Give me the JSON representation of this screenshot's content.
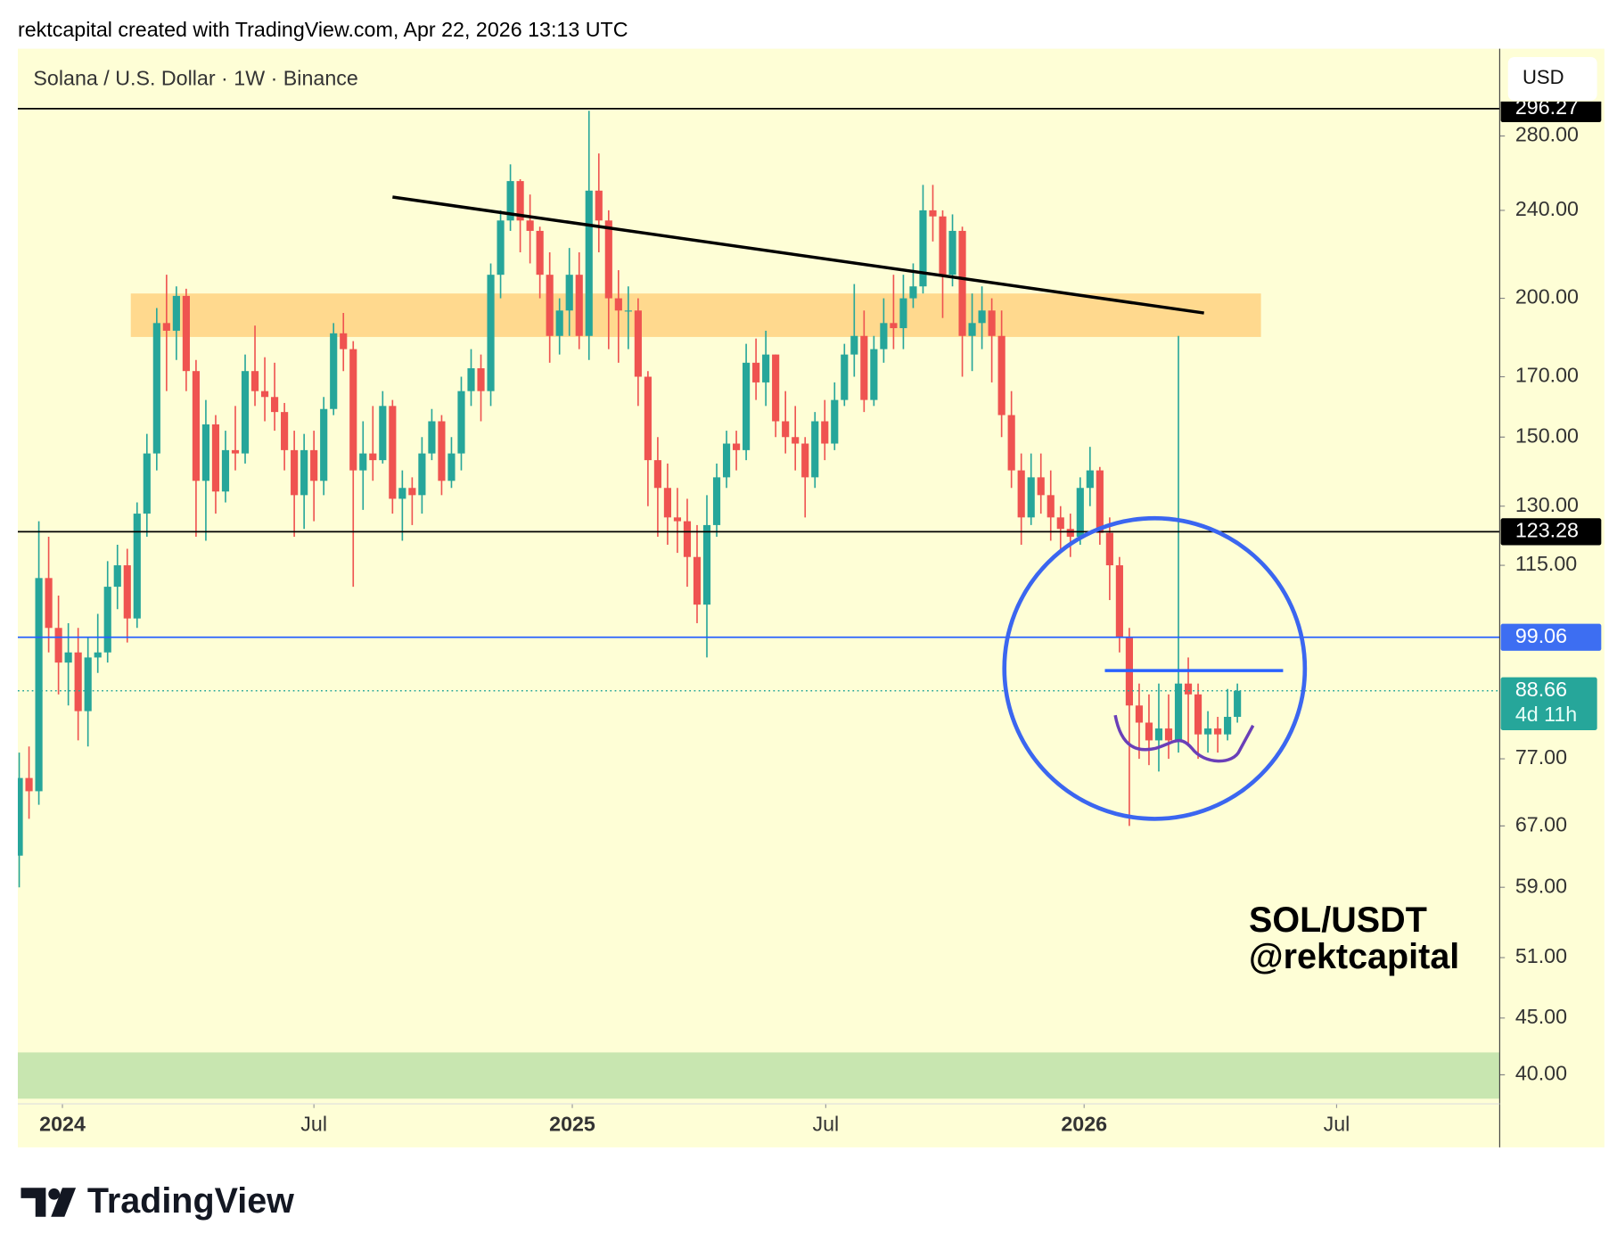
{
  "header": "rektcapital created with TradingView.com, Apr 22, 2026 13:13 UTC",
  "chart_data": {
    "type": "candlestick",
    "title": "Solana / U.S. Dollar · 1W · Binance",
    "currency": "USD",
    "log_scale": true,
    "up_color": "#26a69a",
    "down_color": "#ef5350",
    "ylim": [
      38.07,
      335.5
    ],
    "yticks": [
      {
        "value": 280,
        "label": "280.00"
      },
      {
        "value": 240,
        "label": "240.00"
      },
      {
        "value": 200,
        "label": "200.00"
      },
      {
        "value": 170,
        "label": "170.00"
      },
      {
        "value": 150,
        "label": "150.00"
      },
      {
        "value": 130,
        "label": "130.00"
      },
      {
        "value": 115,
        "label": "115.00"
      },
      {
        "value": 77,
        "label": "77.00"
      },
      {
        "value": 67,
        "label": "67.00"
      },
      {
        "value": 59,
        "label": "59.00"
      },
      {
        "value": 51,
        "label": "51.00"
      },
      {
        "value": 45,
        "label": "45.00"
      },
      {
        "value": 40,
        "label": "40.00"
      }
    ],
    "xlim": [
      -0.14,
      150.7
    ],
    "xticks": [
      {
        "value": 4.4,
        "label": "2024"
      },
      {
        "value": 30.0,
        "label": "Jul"
      },
      {
        "value": 56.3,
        "label": "2025"
      },
      {
        "value": 82.1,
        "label": "Jul"
      },
      {
        "value": 108.4,
        "label": "2026"
      },
      {
        "value": 134.1,
        "label": "Jul"
      }
    ],
    "ohlc": [
      [
        63,
        78,
        59,
        74
      ],
      [
        74,
        79,
        68,
        72
      ],
      [
        72,
        126,
        70,
        112
      ],
      [
        112,
        122,
        96,
        101
      ],
      [
        101,
        108,
        88,
        94
      ],
      [
        94,
        102,
        86,
        96
      ],
      [
        96,
        101,
        80,
        85
      ],
      [
        85,
        99,
        79,
        95
      ],
      [
        95,
        104,
        92,
        96
      ],
      [
        96,
        116,
        94,
        110
      ],
      [
        110,
        120,
        105,
        115
      ],
      [
        115,
        119,
        98,
        103
      ],
      [
        103,
        131,
        101,
        128
      ],
      [
        128,
        151,
        122,
        145
      ],
      [
        145,
        196,
        140,
        190
      ],
      [
        190,
        210,
        165,
        187
      ],
      [
        187,
        205,
        176,
        201
      ],
      [
        201,
        204,
        165,
        172
      ],
      [
        172,
        176,
        122,
        137
      ],
      [
        137,
        162,
        121,
        154
      ],
      [
        154,
        157,
        128,
        134
      ],
      [
        134,
        152,
        131,
        146
      ],
      [
        146,
        160,
        140,
        145
      ],
      [
        145,
        178,
        142,
        172
      ],
      [
        172,
        189,
        160,
        165
      ],
      [
        165,
        177,
        155,
        163
      ],
      [
        163,
        175,
        152,
        158
      ],
      [
        158,
        161,
        140,
        146
      ],
      [
        146,
        152,
        122,
        133
      ],
      [
        133,
        151,
        124,
        146
      ],
      [
        146,
        152,
        126,
        137
      ],
      [
        137,
        163,
        133,
        159
      ],
      [
        159,
        190,
        157,
        186
      ],
      [
        186,
        194,
        172,
        180
      ],
      [
        180,
        183,
        110,
        140
      ],
      [
        140,
        155,
        129,
        145
      ],
      [
        145,
        160,
        137,
        143
      ],
      [
        143,
        165,
        142,
        160
      ],
      [
        160,
        162,
        128,
        132
      ],
      [
        132,
        140,
        121,
        135
      ],
      [
        135,
        138,
        125,
        133
      ],
      [
        133,
        150,
        128,
        145
      ],
      [
        145,
        159,
        143,
        155
      ],
      [
        155,
        157,
        133,
        137
      ],
      [
        137,
        150,
        135,
        145
      ],
      [
        145,
        170,
        140,
        165
      ],
      [
        165,
        180,
        160,
        173
      ],
      [
        173,
        178,
        155,
        165
      ],
      [
        165,
        215,
        160,
        210
      ],
      [
        210,
        240,
        200,
        235
      ],
      [
        235,
        264,
        230,
        255
      ],
      [
        255,
        256,
        220,
        235
      ],
      [
        235,
        248,
        215,
        230
      ],
      [
        230,
        232,
        200,
        210
      ],
      [
        210,
        220,
        175,
        185
      ],
      [
        185,
        200,
        178,
        195
      ],
      [
        195,
        222,
        185,
        210
      ],
      [
        210,
        220,
        180,
        185
      ],
      [
        185,
        295,
        176,
        250
      ],
      [
        250,
        270,
        220,
        235
      ],
      [
        235,
        240,
        180,
        200
      ],
      [
        200,
        212,
        175,
        195
      ],
      [
        195,
        205,
        180,
        195
      ],
      [
        195,
        200,
        160,
        170
      ],
      [
        170,
        172,
        130,
        143
      ],
      [
        143,
        150,
        122,
        135
      ],
      [
        135,
        142,
        120,
        127
      ],
      [
        127,
        135,
        118,
        126
      ],
      [
        126,
        132,
        110,
        117
      ],
      [
        117,
        125,
        102,
        106
      ],
      [
        106,
        133,
        95,
        125
      ],
      [
        125,
        142,
        122,
        138
      ],
      [
        138,
        152,
        135,
        148
      ],
      [
        148,
        152,
        140,
        146
      ],
      [
        146,
        182,
        143,
        175
      ],
      [
        175,
        184,
        162,
        168
      ],
      [
        168,
        187,
        160,
        178
      ],
      [
        178,
        178,
        150,
        155
      ],
      [
        155,
        165,
        145,
        150
      ],
      [
        150,
        160,
        140,
        148
      ],
      [
        148,
        150,
        127,
        138
      ],
      [
        138,
        158,
        135,
        155
      ],
      [
        155,
        162,
        143,
        148
      ],
      [
        148,
        168,
        146,
        162
      ],
      [
        162,
        182,
        160,
        178
      ],
      [
        178,
        206,
        170,
        185
      ],
      [
        185,
        195,
        158,
        162
      ],
      [
        162,
        185,
        160,
        180
      ],
      [
        180,
        200,
        175,
        190
      ],
      [
        190,
        210,
        180,
        188
      ],
      [
        188,
        210,
        180,
        200
      ],
      [
        200,
        215,
        196,
        205
      ],
      [
        205,
        253,
        202,
        240
      ],
      [
        240,
        253,
        225,
        237
      ],
      [
        237,
        240,
        192,
        210
      ],
      [
        210,
        238,
        205,
        230
      ],
      [
        230,
        232,
        170,
        185
      ],
      [
        185,
        202,
        172,
        190
      ],
      [
        190,
        205,
        180,
        195
      ],
      [
        195,
        200,
        168,
        185
      ],
      [
        185,
        195,
        150,
        157
      ],
      [
        157,
        165,
        135,
        140
      ],
      [
        140,
        145,
        120,
        127
      ],
      [
        127,
        145,
        125,
        138
      ],
      [
        138,
        145,
        128,
        133
      ],
      [
        133,
        140,
        121,
        127
      ],
      [
        127,
        130,
        118,
        124
      ],
      [
        124,
        128,
        117,
        122
      ],
      [
        122,
        138,
        120,
        135
      ],
      [
        135,
        147,
        130,
        140
      ],
      [
        140,
        141,
        120,
        123
      ],
      [
        123,
        127,
        107,
        115
      ],
      [
        115,
        117,
        96,
        99
      ],
      [
        99,
        101,
        67,
        86
      ],
      [
        86,
        90,
        77,
        83
      ],
      [
        83,
        88,
        76,
        80
      ],
      [
        80,
        90,
        75,
        82
      ],
      [
        82,
        88,
        77,
        80
      ],
      [
        80,
        185,
        78,
        90
      ],
      [
        90,
        95,
        79,
        88
      ],
      [
        88,
        90,
        77,
        81
      ],
      [
        81,
        85,
        78,
        82
      ],
      [
        82,
        84,
        78,
        81
      ],
      [
        81,
        89,
        80,
        84
      ],
      [
        84,
        90,
        83,
        88.66
      ]
    ],
    "levels": [
      {
        "value": 296.27,
        "color": "#000000",
        "label_color": "#000000"
      },
      {
        "value": 123.28,
        "color": "#000000",
        "label_color": "#000000"
      },
      {
        "value": 99.06,
        "color": "#2962ff",
        "label_color": "#3d6ef2"
      }
    ],
    "current_price": 88.66,
    "countdown": "4d 11h",
    "zones": [
      {
        "low": 184.6,
        "high": 202,
        "start": 11.36,
        "end": 126.4,
        "color": "#ffd98e"
      },
      {
        "low": 30,
        "high": 41.9,
        "color": "#c8e6b0"
      }
    ],
    "trendline": {
      "x": [
        38.0,
        120.6
      ],
      "y": [
        246.7,
        194
      ],
      "color": "#000000"
    },
    "annotation": [
      "SOL/USDT",
      "@rektcapital"
    ]
  },
  "footer": "TradingView"
}
